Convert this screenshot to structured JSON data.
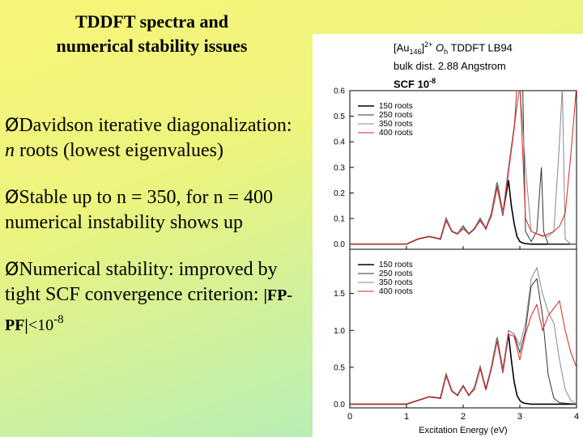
{
  "slide": {
    "title_line1": "TDDFT spectra and",
    "title_line2": "numerical stability issues",
    "bullet_mark": "Ø",
    "bullet1_pre": "Davidson iterative diagonalization: ",
    "bullet1_n": "n",
    "bullet1_post": " roots (lowest eigenvalues)",
    "bullet2": "Stable up to n = 350, for n = 400 numerical instability shows up",
    "bullet3_pre": "Numerical stability: improved by tight SCF convergence criterion: ",
    "bullet3_expr": "|FP-PF|",
    "bullet3_lt": "<10",
    "bullet3_exp": "-8"
  },
  "figure": {
    "title_a": "[Au",
    "title_sub": "146",
    "title_b": "]",
    "title_sup": "2+",
    "title_oh": " O",
    "title_oh_sub": "h",
    "title_c": " TDDFT LB94",
    "title_line2": "bulk dist. 2.88 Angstrom",
    "title_line3": "SCF 10",
    "title_line3_sup": "-8"
  },
  "chart_data": [
    {
      "type": "line",
      "panel": "top",
      "xlim": [
        0,
        4
      ],
      "ylim": [
        -0.02,
        0.6
      ],
      "yticks": [
        "0.0",
        "0.1",
        "0.2",
        "0.3",
        "0.4",
        "0.5",
        "0.6"
      ],
      "legend_position": "top-left",
      "series": [
        {
          "name": "150 roots",
          "color": "#000000",
          "width": 1.6,
          "x": [
            0,
            1.0,
            1.2,
            1.4,
            1.6,
            1.7,
            1.8,
            1.9,
            2.0,
            2.1,
            2.2,
            2.3,
            2.4,
            2.5,
            2.6,
            2.7,
            2.8,
            2.85,
            2.9,
            2.95,
            3.0,
            3.05,
            3.1,
            3.2,
            4.0
          ],
          "y": [
            0,
            0,
            0.02,
            0.03,
            0.02,
            0.1,
            0.05,
            0.04,
            0.07,
            0.04,
            0.06,
            0.1,
            0.06,
            0.12,
            0.24,
            0.12,
            0.25,
            0.15,
            0.08,
            0.03,
            0.01,
            0.005,
            0.002,
            0,
            0
          ]
        },
        {
          "name": "250 roots",
          "color": "#333333",
          "width": 1.0,
          "x": [
            0,
            1.0,
            1.2,
            1.4,
            1.6,
            1.7,
            1.8,
            1.9,
            2.0,
            2.1,
            2.2,
            2.3,
            2.4,
            2.5,
            2.6,
            2.7,
            2.8,
            2.9,
            3.0,
            3.05,
            3.1,
            3.2,
            3.3,
            3.38,
            3.42,
            3.5,
            4.0
          ],
          "y": [
            0,
            0,
            0.02,
            0.03,
            0.02,
            0.1,
            0.05,
            0.04,
            0.07,
            0.04,
            0.06,
            0.1,
            0.06,
            0.12,
            0.24,
            0.12,
            0.3,
            0.46,
            0.62,
            0.62,
            0.05,
            0.01,
            0.05,
            0.3,
            0.05,
            0,
            0
          ]
        },
        {
          "name": "350 roots",
          "color": "#888888",
          "width": 1.0,
          "x": [
            0,
            1.0,
            1.2,
            1.4,
            1.6,
            1.7,
            1.8,
            1.9,
            2.0,
            2.1,
            2.2,
            2.3,
            2.4,
            2.5,
            2.6,
            2.7,
            2.8,
            2.9,
            3.0,
            3.1,
            3.2,
            3.3,
            3.5,
            3.6,
            3.7,
            3.75,
            3.8,
            3.9,
            4.0
          ],
          "y": [
            0,
            0,
            0.02,
            0.03,
            0.02,
            0.1,
            0.05,
            0.04,
            0.07,
            0.04,
            0.06,
            0.1,
            0.06,
            0.12,
            0.24,
            0.12,
            0.3,
            0.45,
            0.62,
            0.3,
            0.05,
            0.04,
            0.03,
            0.05,
            0.4,
            0.62,
            0.02,
            0,
            0
          ]
        },
        {
          "name": "400 roots",
          "color": "#e02020",
          "width": 1.0,
          "x": [
            0,
            1.0,
            1.2,
            1.4,
            1.6,
            1.7,
            1.8,
            1.9,
            2.0,
            2.1,
            2.2,
            2.3,
            2.4,
            2.5,
            2.6,
            2.7,
            2.8,
            2.9,
            2.95,
            3.0,
            3.1,
            3.2,
            3.3,
            3.4,
            3.5,
            3.6,
            3.7,
            3.8,
            3.9,
            4.0
          ],
          "y": [
            0,
            0,
            0.02,
            0.03,
            0.02,
            0.09,
            0.05,
            0.04,
            0.06,
            0.04,
            0.06,
            0.09,
            0.06,
            0.11,
            0.22,
            0.11,
            0.28,
            0.45,
            0.62,
            0.62,
            0.1,
            0.05,
            0.04,
            0.03,
            0.04,
            0.05,
            0.07,
            0.12,
            0.35,
            0.62
          ]
        }
      ]
    },
    {
      "type": "line",
      "panel": "bottom",
      "xlim": [
        0,
        4
      ],
      "ylim": [
        -0.05,
        2.1
      ],
      "yticks": [
        "0.0",
        "0.5",
        "1.0",
        "1.5"
      ],
      "xticks": [
        "0",
        "1",
        "2",
        "3",
        "4"
      ],
      "xlabel": "Excitation Energy (eV)",
      "legend_position": "top-left",
      "series": [
        {
          "name": "150 roots",
          "color": "#000000",
          "width": 1.6,
          "x": [
            0,
            1.0,
            1.2,
            1.4,
            1.6,
            1.7,
            1.8,
            1.9,
            2.0,
            2.1,
            2.2,
            2.3,
            2.4,
            2.5,
            2.6,
            2.7,
            2.8,
            2.85,
            2.9,
            2.95,
            3.0,
            3.05,
            3.1,
            3.2,
            4.0
          ],
          "y": [
            0,
            0,
            0.05,
            0.1,
            0.08,
            0.4,
            0.18,
            0.12,
            0.25,
            0.12,
            0.22,
            0.5,
            0.2,
            0.5,
            0.9,
            0.45,
            0.95,
            0.6,
            0.3,
            0.12,
            0.05,
            0.02,
            0.01,
            0,
            0
          ]
        },
        {
          "name": "250 roots",
          "color": "#333333",
          "width": 1.0,
          "x": [
            0,
            1.0,
            1.2,
            1.4,
            1.6,
            1.7,
            1.8,
            1.9,
            2.0,
            2.1,
            2.2,
            2.3,
            2.4,
            2.5,
            2.6,
            2.7,
            2.8,
            2.9,
            3.0,
            3.1,
            3.2,
            3.3,
            3.4,
            3.5,
            3.6,
            3.7,
            4.0
          ],
          "y": [
            0,
            0,
            0.05,
            0.1,
            0.08,
            0.4,
            0.18,
            0.12,
            0.25,
            0.12,
            0.22,
            0.5,
            0.2,
            0.5,
            0.9,
            0.45,
            1.0,
            0.95,
            0.7,
            1.0,
            1.6,
            1.7,
            1.2,
            0.4,
            0.08,
            0.02,
            0
          ]
        },
        {
          "name": "350 roots",
          "color": "#888888",
          "width": 1.0,
          "x": [
            0,
            1.0,
            1.2,
            1.4,
            1.6,
            1.7,
            1.8,
            1.9,
            2.0,
            2.1,
            2.2,
            2.3,
            2.4,
            2.5,
            2.6,
            2.7,
            2.8,
            2.9,
            3.0,
            3.1,
            3.2,
            3.3,
            3.4,
            3.5,
            3.6,
            3.7,
            3.8,
            3.9,
            4.0
          ],
          "y": [
            0,
            0,
            0.05,
            0.1,
            0.08,
            0.4,
            0.18,
            0.12,
            0.25,
            0.12,
            0.22,
            0.5,
            0.2,
            0.5,
            0.9,
            0.45,
            1.0,
            0.95,
            0.8,
            1.1,
            1.7,
            1.85,
            1.5,
            1.25,
            1.1,
            0.6,
            0.2,
            0.05,
            0
          ]
        },
        {
          "name": "400 roots",
          "color": "#e02020",
          "width": 1.0,
          "x": [
            0,
            1.0,
            1.2,
            1.4,
            1.6,
            1.7,
            1.8,
            1.9,
            2.0,
            2.1,
            2.2,
            2.3,
            2.4,
            2.5,
            2.6,
            2.7,
            2.8,
            2.9,
            3.0,
            3.1,
            3.2,
            3.3,
            3.4,
            3.5,
            3.6,
            3.7,
            3.8,
            3.9,
            4.0
          ],
          "y": [
            0,
            0,
            0.05,
            0.1,
            0.08,
            0.38,
            0.17,
            0.12,
            0.24,
            0.12,
            0.2,
            0.48,
            0.2,
            0.48,
            0.85,
            0.42,
            0.95,
            0.92,
            0.6,
            0.95,
            1.2,
            1.35,
            1.0,
            1.2,
            1.3,
            1.4,
            1.0,
            0.7,
            0.5
          ]
        }
      ]
    }
  ]
}
